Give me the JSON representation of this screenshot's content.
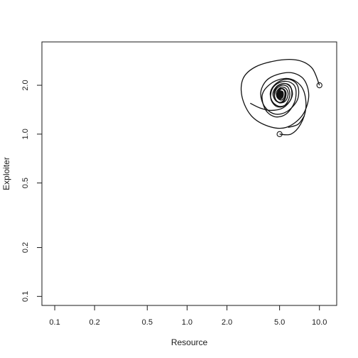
{
  "chart_data": {
    "type": "line",
    "title": "",
    "xlabel": "Resource",
    "ylabel": "Exploiter",
    "xscale": "log",
    "yscale": "log",
    "xlim": [
      0.08,
      13.5
    ],
    "ylim": [
      0.088,
      3.7
    ],
    "grid": false,
    "legend": "none",
    "x_ticks": [
      {
        "value": 0.1,
        "label": "0.1"
      },
      {
        "value": 0.2,
        "label": "0.2"
      },
      {
        "value": 0.5,
        "label": "0.5"
      },
      {
        "value": 1.0,
        "label": "1.0"
      },
      {
        "value": 2.0,
        "label": "2.0"
      },
      {
        "value": 5.0,
        "label": "5.0"
      },
      {
        "value": 10.0,
        "label": "10.0"
      }
    ],
    "y_ticks": [
      {
        "value": 0.1,
        "label": "0.1"
      },
      {
        "value": 0.2,
        "label": "0.2"
      },
      {
        "value": 0.5,
        "label": "0.5"
      },
      {
        "value": 1.0,
        "label": "1.0"
      },
      {
        "value": 2.0,
        "label": "2.0"
      }
    ],
    "equilibrium": {
      "x": 5.0,
      "y": 1.75
    },
    "series": [
      {
        "start": {
          "x": 10.0,
          "y": 2.0
        },
        "points": [
          [
            10.0,
            2.0
          ],
          [
            8.8,
            2.55
          ],
          [
            6.9,
            2.85
          ],
          [
            4.9,
            2.85
          ],
          [
            3.3,
            2.6
          ],
          [
            2.65,
            2.2
          ],
          [
            2.6,
            1.7
          ],
          [
            3.05,
            1.3
          ],
          [
            4.1,
            1.12
          ],
          [
            5.6,
            1.1
          ],
          [
            7.4,
            1.3
          ],
          [
            8.3,
            1.7
          ],
          [
            7.7,
            2.15
          ],
          [
            6.3,
            2.38
          ],
          [
            5.0,
            2.35
          ],
          [
            4.0,
            2.15
          ],
          [
            3.6,
            1.8
          ],
          [
            3.85,
            1.48
          ],
          [
            4.6,
            1.33
          ],
          [
            5.7,
            1.38
          ],
          [
            6.8,
            1.62
          ],
          [
            6.9,
            1.95
          ],
          [
            6.2,
            2.15
          ],
          [
            5.3,
            2.16
          ],
          [
            4.55,
            2.0
          ],
          [
            4.25,
            1.78
          ],
          [
            4.45,
            1.57
          ],
          [
            5.05,
            1.48
          ],
          [
            5.8,
            1.55
          ],
          [
            6.25,
            1.75
          ],
          [
            6.0,
            1.98
          ],
          [
            5.45,
            2.05
          ],
          [
            4.85,
            1.98
          ],
          [
            4.55,
            1.8
          ],
          [
            4.7,
            1.62
          ],
          [
            5.15,
            1.56
          ],
          [
            5.6,
            1.62
          ],
          [
            5.8,
            1.78
          ],
          [
            5.55,
            1.92
          ],
          [
            5.1,
            1.94
          ],
          [
            4.75,
            1.82
          ],
          [
            4.8,
            1.68
          ],
          [
            5.15,
            1.62
          ],
          [
            5.45,
            1.7
          ],
          [
            5.45,
            1.84
          ],
          [
            5.15,
            1.9
          ],
          [
            4.88,
            1.8
          ],
          [
            5.0,
            1.7
          ],
          [
            5.2,
            1.72
          ],
          [
            5.25,
            1.8
          ],
          [
            5.05,
            1.85
          ],
          [
            4.95,
            1.77
          ],
          [
            5.0,
            1.75
          ]
        ]
      },
      {
        "start": {
          "x": 5.0,
          "y": 1.0
        },
        "points": [
          [
            5.0,
            1.0
          ],
          [
            6.1,
            1.0
          ],
          [
            7.2,
            1.15
          ],
          [
            7.9,
            1.45
          ],
          [
            7.6,
            1.85
          ],
          [
            6.6,
            2.12
          ],
          [
            5.4,
            2.2
          ],
          [
            4.3,
            2.05
          ],
          [
            3.7,
            1.75
          ],
          [
            3.9,
            1.42
          ],
          [
            4.6,
            1.28
          ],
          [
            5.6,
            1.33
          ],
          [
            6.5,
            1.58
          ],
          [
            6.6,
            1.92
          ],
          [
            5.9,
            2.1
          ],
          [
            5.0,
            2.08
          ],
          [
            4.4,
            1.9
          ],
          [
            4.3,
            1.64
          ],
          [
            4.75,
            1.48
          ],
          [
            5.45,
            1.5
          ],
          [
            5.95,
            1.7
          ],
          [
            5.8,
            1.94
          ],
          [
            5.2,
            2.0
          ],
          [
            4.7,
            1.88
          ],
          [
            4.6,
            1.68
          ],
          [
            4.95,
            1.56
          ],
          [
            5.4,
            1.6
          ],
          [
            5.6,
            1.78
          ],
          [
            5.35,
            1.9
          ],
          [
            4.95,
            1.88
          ],
          [
            4.8,
            1.74
          ],
          [
            5.0,
            1.64
          ],
          [
            5.3,
            1.7
          ],
          [
            5.3,
            1.82
          ],
          [
            5.05,
            1.84
          ],
          [
            4.92,
            1.74
          ],
          [
            5.05,
            1.7
          ],
          [
            5.15,
            1.76
          ],
          [
            5.0,
            1.78
          ],
          [
            5.0,
            1.75
          ]
        ]
      },
      {
        "start": {
          "x": 3.0,
          "y": 1.55
        },
        "points": [
          [
            3.0,
            1.55
          ],
          [
            3.55,
            1.45
          ],
          [
            4.3,
            1.4
          ],
          [
            5.3,
            1.45
          ],
          [
            6.1,
            1.65
          ],
          [
            6.1,
            1.92
          ],
          [
            5.5,
            2.05
          ],
          [
            4.8,
            1.98
          ],
          [
            4.45,
            1.78
          ],
          [
            4.7,
            1.6
          ],
          [
            5.2,
            1.58
          ],
          [
            5.55,
            1.72
          ],
          [
            5.4,
            1.88
          ],
          [
            5.0,
            1.9
          ],
          [
            4.8,
            1.76
          ],
          [
            5.0,
            1.66
          ],
          [
            5.25,
            1.72
          ],
          [
            5.2,
            1.82
          ],
          [
            5.0,
            1.8
          ],
          [
            5.0,
            1.75
          ]
        ]
      },
      {
        "start": {
          "x": 5.8,
          "y": 1.1
        },
        "points": [
          [
            5.8,
            1.1
          ],
          [
            6.9,
            1.15
          ],
          [
            7.7,
            1.3
          ]
        ]
      }
    ]
  }
}
